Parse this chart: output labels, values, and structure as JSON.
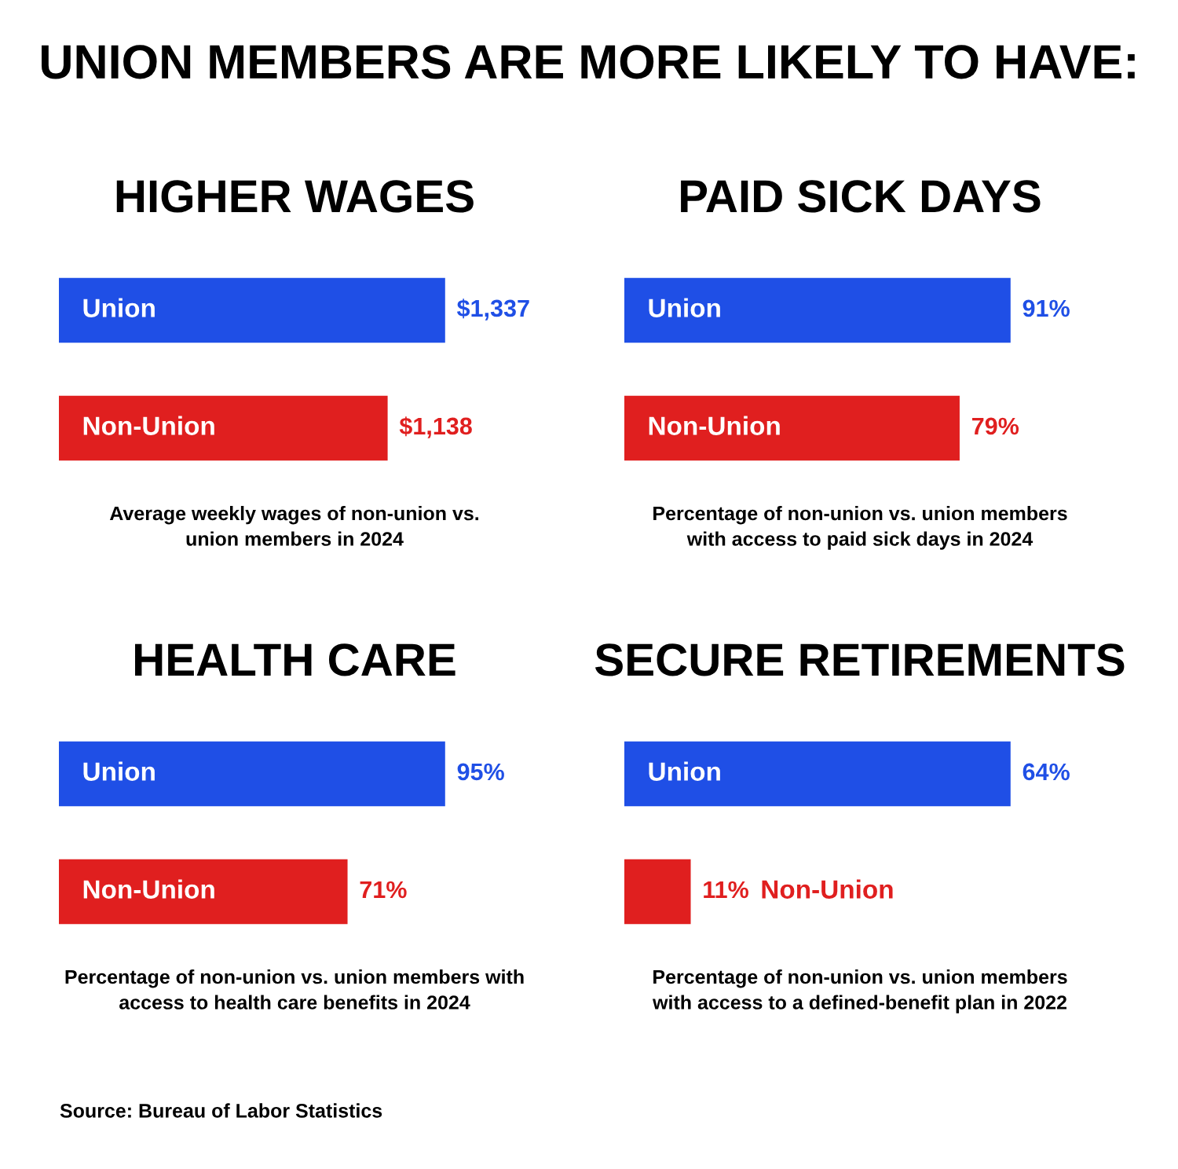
{
  "chart_data": [
    {
      "type": "other",
      "title": "UNION MEMBERS ARE MORE LIKELY TO HAVE:",
      "annotations": [
        "Source: Bureau of Labor Statistics"
      ]
    },
    {
      "type": "bar",
      "orientation": "horizontal",
      "title": "HIGHER WAGES",
      "categories": [
        "Union",
        "Non-Union"
      ],
      "values": [
        1337,
        1138
      ],
      "colors": [
        "#1f4fe6",
        "#e01f1f"
      ],
      "value_labels": [
        "$1,337",
        "$1,138"
      ],
      "annotations": [
        "Average weekly wages of non-union vs.\nunion members in 2024"
      ]
    },
    {
      "type": "bar",
      "orientation": "horizontal",
      "title": "PAID SICK DAYS",
      "categories": [
        "Union",
        "Non-Union"
      ],
      "values": [
        91,
        79
      ],
      "colors": [
        "#1f4fe6",
        "#e01f1f"
      ],
      "value_labels": [
        "91%",
        "79%"
      ],
      "annotations": [
        "Percentage of non-union vs. union members\nwith access to paid sick days in 2024"
      ]
    },
    {
      "type": "bar",
      "orientation": "horizontal",
      "title": "HEALTH CARE",
      "categories": [
        "Union",
        "Non-Union"
      ],
      "values": [
        95,
        71
      ],
      "colors": [
        "#1f4fe6",
        "#e01f1f"
      ],
      "value_labels": [
        "95%",
        "71%"
      ],
      "annotations": [
        "Percentage of non-union vs. union members with\naccess to health care benefits in 2024"
      ]
    },
    {
      "type": "bar",
      "orientation": "horizontal",
      "title": "SECURE RETIREMENTS",
      "categories": [
        "Union",
        "Non-Union"
      ],
      "values": [
        64,
        11
      ],
      "colors": [
        "#1f4fe6",
        "#e01f1f"
      ],
      "value_labels": [
        "64%",
        "11%"
      ],
      "annotations": [
        "Percentage of non-union vs. union members\nwith access to a defined-benefit plan in 2022"
      ]
    }
  ]
}
